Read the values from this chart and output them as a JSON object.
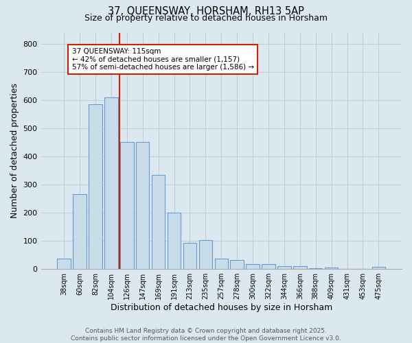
{
  "title": "37, QUEENSWAY, HORSHAM, RH13 5AP",
  "subtitle": "Size of property relative to detached houses in Horsham",
  "xlabel": "Distribution of detached houses by size in Horsham",
  "ylabel": "Number of detached properties",
  "categories": [
    "38sqm",
    "60sqm",
    "82sqm",
    "104sqm",
    "126sqm",
    "147sqm",
    "169sqm",
    "191sqm",
    "213sqm",
    "235sqm",
    "257sqm",
    "278sqm",
    "300sqm",
    "322sqm",
    "344sqm",
    "366sqm",
    "388sqm",
    "409sqm",
    "431sqm",
    "453sqm",
    "475sqm"
  ],
  "values": [
    37,
    267,
    585,
    610,
    450,
    452,
    335,
    200,
    93,
    103,
    37,
    32,
    17,
    17,
    10,
    10,
    3,
    5,
    0,
    0,
    7
  ],
  "bar_color": "#c9dcea",
  "bar_edge_color": "#6699cc",
  "bar_width": 0.85,
  "vline_color": "#cc2200",
  "vline_x_index": 3.55,
  "annotation_text": "37 QUEENSWAY: 115sqm\n← 42% of detached houses are smaller (1,157)\n57% of semi-detached houses are larger (1,586) →",
  "annotation_box_color": "#ffffff",
  "annotation_box_edge": "#cc2200",
  "ylim": [
    0,
    840
  ],
  "yticks": [
    0,
    100,
    200,
    300,
    400,
    500,
    600,
    700,
    800
  ],
  "grid_color": "#c0cedc",
  "background_color": "#dce8f0",
  "footnote1": "Contains HM Land Registry data © Crown copyright and database right 2025.",
  "footnote2": "Contains public sector information licensed under the Open Government Licence v3.0."
}
